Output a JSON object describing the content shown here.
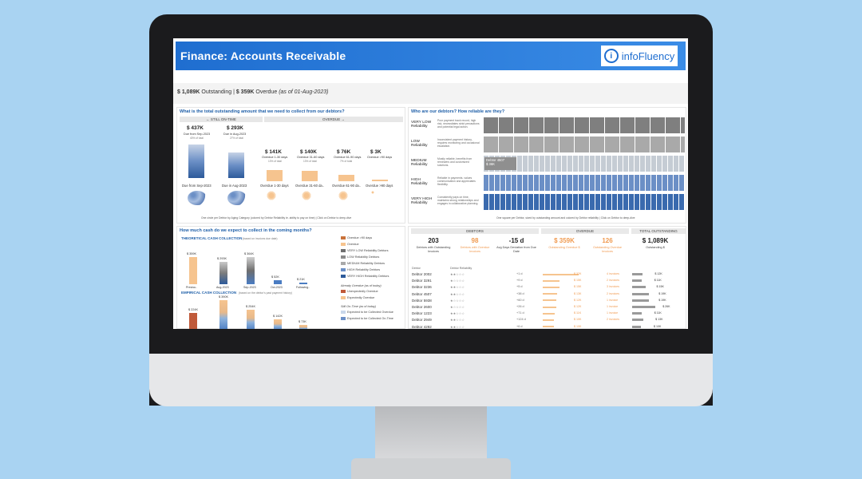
{
  "colors": {
    "background": "#a9d3f2",
    "accent": "#1f6ed0",
    "overdue": "#f0a060",
    "ontime": "#6b8fc6"
  },
  "header": {
    "title": "Finance:  Accounts Receivable",
    "logo_text": "infoFluency",
    "logo_icon": "info-icon"
  },
  "summary": {
    "outstanding_value": "$ 1,089K",
    "outstanding_label": "Outstanding",
    "overdue_value": "$ 359K",
    "overdue_label": "Overdue",
    "asof": "(as of 01-Aug-2023)"
  },
  "left_top": {
    "title": "What is the total outstanding amount that we need to collect from our debtors?",
    "tab_ontime": "←   STILL ON-TIME",
    "tab_overdue": "OVERDUE   →",
    "buckets": [
      {
        "value": "$ 437K",
        "sub": "Due from Sep-2023",
        "pct": "40% of total",
        "label": "Due from Sep-2023"
      },
      {
        "value": "$ 293K",
        "sub": "Due in Aug-2023",
        "pct": "27% of total",
        "label": "Due in Aug-2023"
      },
      {
        "value": "$ 141K",
        "sub": "Overdue 1-30 days",
        "pct": "13% of total",
        "label": "Overdue 1-30 days"
      },
      {
        "value": "$ 140K",
        "sub": "Overdue 31-60 days",
        "pct": "13% of total",
        "label": "Overdue 31-60 da.."
      },
      {
        "value": "$ 76K",
        "sub": "Overdue 61-90 days",
        "pct": "7% of total",
        "label": "Overdue 61-90 da.."
      },
      {
        "value": "$ 3K",
        "sub": "Overdue >90 days",
        "pct": "",
        "label": "Overdue >90 days"
      }
    ],
    "footnote": "One circle per Debtor by Aging Category (colored by Debtor Reliability ie. ability to pay on time) | Click on Debtor to deep-dive"
  },
  "left_bottom": {
    "title": "How much cash do we expect to collect in the coming months?",
    "theoretical_title": "THEORETICAL CASH COLLECTION",
    "theoretical_note": "(based on invoices due date)",
    "theoretical_bars": [
      {
        "label": "Previou..",
        "value": "$ 359K"
      },
      {
        "label": "Aug-2023",
        "value": "$ 293K"
      },
      {
        "label": "Sep-2023",
        "value": "$ 364K"
      },
      {
        "label": "Oct-2023",
        "value": "$ 52K"
      },
      {
        "label": "Following..",
        "value": "$ 21K"
      }
    ],
    "empirical_title": "EMPIRICAL CASH COLLECTION",
    "empirical_note": "(based on the debtor's past payment history)",
    "empirical_bars": [
      {
        "label": "",
        "value": "$ 224K"
      },
      {
        "label": "",
        "value": "$ 390K"
      },
      {
        "label": "",
        "value": "$ 254K"
      },
      {
        "label": "",
        "value": "$ 142K"
      },
      {
        "label": "",
        "value": "$ 73K"
      }
    ],
    "legend1": [
      "Overdue >90 days",
      "Overdue",
      "VERY LOW Reliability Debtors",
      "LOW Reliability Debtors",
      "MEDIUM Reliability Debtors",
      "HIGH Reliability Debtors",
      "VERY HIGH Reliability Debtors"
    ],
    "legend2_title": "Already Overdue (as of today)",
    "legend2": [
      "Unexpectedly Overdue",
      "Expectedly Overdue"
    ],
    "legend3_title": "Still On-Time (as of today)",
    "legend3": [
      "Expected to be Collected Overdue",
      "Expected to be Collected On-Time"
    ]
  },
  "right_top": {
    "title": "Who are our debtors? How reliable are they?",
    "rows": [
      {
        "name": "VERY LOW Reliability",
        "desc": "Poor payment track record, high risk, necessitates strict precautions and potential legal action."
      },
      {
        "name": "LOW Reliability",
        "desc": "Inconsistent payment history, requires monitoring and occasional escalation."
      },
      {
        "name": "MEDIUM Reliability",
        "desc": "Mostly reliable, benefits from reminders and customized solutions."
      },
      {
        "name": "HIGH Reliability",
        "desc": "Reliable in payments, values communication and appreciates flexibility."
      },
      {
        "name": "VERY HIGH Reliability",
        "desc": "Consistently pays on time, maintains strong relationships and engages in collaborative planning."
      }
    ],
    "callout_name": "Debtor 4507",
    "callout_value": "$ 36K",
    "footnote": "One square per Debtor, sized by outstanding amount and colored by Debtor reliability | Click on Debtor to deep-dive"
  },
  "kpis": {
    "debtors_label": "DEBTORS",
    "overdue_label": "OVERDUE",
    "total_label": "TOTAL OUTSTANDING",
    "items": [
      {
        "value": "203",
        "sub": "Debtors with Outstanding Invoices"
      },
      {
        "value": "98",
        "sub": "Debtors with Overdue Invoices"
      },
      {
        "value": "-15 d",
        "sub": "Avg Days Deviation from Due Date"
      },
      {
        "value": "$ 359K",
        "sub": "Outstanding Overdue $"
      },
      {
        "value": "126",
        "sub": "Outstanding Overdue Invoices"
      },
      {
        "value": "$ 1,089K",
        "sub": "Outstanding $"
      }
    ]
  },
  "debtor_table": {
    "col_debtor": "Debtor",
    "col_reliability": "Debtor Reliability",
    "rows": [
      {
        "name": "Debtor 2002",
        "stars": "★★☆☆☆",
        "dev": "+1 d",
        "overdue": "$ 32K",
        "count": "4 invoices",
        "total": "$ 12K"
      },
      {
        "name": "Debtor 3291",
        "stars": "★☆☆☆☆",
        "dev": "+9 d",
        "overdue": "$ 15K",
        "count": "2 invoices",
        "total": "$ 11K"
      },
      {
        "name": "Debtor 3236",
        "stars": "★★☆☆☆",
        "dev": "+5 d",
        "overdue": "$ 15K",
        "count": "3 invoices",
        "total": "$ 15K"
      },
      {
        "name": "Debtor 4507",
        "stars": "★★☆☆☆",
        "dev": "+38 d",
        "overdue": "$ 13K",
        "count": "2 invoices",
        "total": "$ 19K"
      },
      {
        "name": "Debtor 5938",
        "stars": "★☆☆☆☆",
        "dev": "+60 d",
        "overdue": "$ 12K",
        "count": "1 invoice",
        "total": "$ 19K"
      },
      {
        "name": "Debtor 2600",
        "stars": "★☆☆☆☆",
        "dev": "+26 d",
        "overdue": "$ 12K",
        "count": "1 invoice",
        "total": "$ 26K"
      },
      {
        "name": "Debtor 1223",
        "stars": "★★☆☆☆",
        "dev": "+71 d",
        "overdue": "$ 11K",
        "count": "1 invoice",
        "total": "$ 11K"
      },
      {
        "name": "Debtor 2949",
        "stars": "★★☆☆☆",
        "dev": "+124 d",
        "overdue": "$ 10K",
        "count": "2 invoices",
        "total": "$ 13K"
      },
      {
        "name": "Debtor 4292",
        "stars": "★★☆☆☆",
        "dev": "+6 d",
        "overdue": "$ 10K",
        "count": "",
        "total": "$ 10K"
      }
    ]
  }
}
